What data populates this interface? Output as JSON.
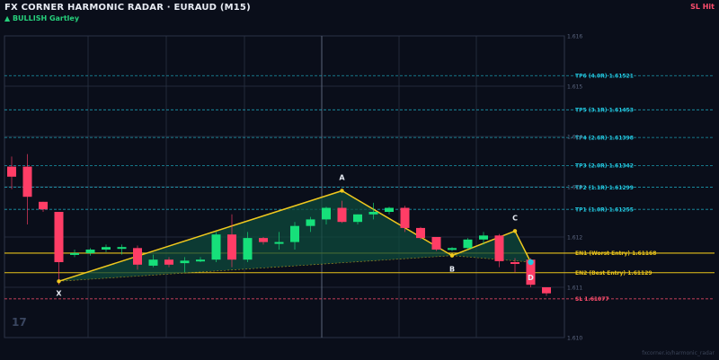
{
  "header": {
    "title": "FX CORNER HARMONIC RADAR  ·  EURAUD (M15)",
    "pattern": "▲ BULLISH  Gartley",
    "status": "SL Hit"
  },
  "footer": {
    "watermark": "17",
    "source": "fxcorner.io/harmonic_radar"
  },
  "chart_data": {
    "type": "candlestick",
    "yticks": [
      "1.616",
      "1.615",
      "1.614",
      "1.613",
      "1.612",
      "1.611",
      "1.610"
    ],
    "ytick_values": [
      1.616,
      1.615,
      1.614,
      1.613,
      1.612,
      1.611,
      1.61
    ],
    "ylim": [
      1.61,
      1.616
    ],
    "candles": [
      {
        "o": 1.6134,
        "h": 1.6136,
        "l": 1.61295,
        "c": 1.6132
      },
      {
        "o": 1.6134,
        "h": 1.61365,
        "l": 1.61225,
        "c": 1.6128
      },
      {
        "o": 1.6127,
        "h": 1.6127,
        "l": 1.6125,
        "c": 1.61255
      },
      {
        "o": 1.6125,
        "h": 1.6125,
        "l": 1.61105,
        "c": 1.6115
      },
      {
        "o": 1.61165,
        "h": 1.61175,
        "l": 1.6116,
        "c": 1.61168
      },
      {
        "o": 1.61168,
        "h": 1.61178,
        "l": 1.61163,
        "c": 1.61175
      },
      {
        "o": 1.61175,
        "h": 1.61185,
        "l": 1.6117,
        "c": 1.6118
      },
      {
        "o": 1.6118,
        "h": 1.61185,
        "l": 1.61165,
        "c": 1.6118
      },
      {
        "o": 1.61178,
        "h": 1.61183,
        "l": 1.61135,
        "c": 1.61145
      },
      {
        "o": 1.61143,
        "h": 1.61165,
        "l": 1.6114,
        "c": 1.61155
      },
      {
        "o": 1.61155,
        "h": 1.6116,
        "l": 1.6114,
        "c": 1.61145
      },
      {
        "o": 1.61148,
        "h": 1.6116,
        "l": 1.6113,
        "c": 1.61153
      },
      {
        "o": 1.61153,
        "h": 1.6116,
        "l": 1.6115,
        "c": 1.61155
      },
      {
        "o": 1.61155,
        "h": 1.6121,
        "l": 1.6115,
        "c": 1.61205
      },
      {
        "o": 1.61205,
        "h": 1.61245,
        "l": 1.6114,
        "c": 1.61155
      },
      {
        "o": 1.61155,
        "h": 1.6121,
        "l": 1.6115,
        "c": 1.61198
      },
      {
        "o": 1.61198,
        "h": 1.612,
        "l": 1.61185,
        "c": 1.6119
      },
      {
        "o": 1.6119,
        "h": 1.6121,
        "l": 1.61175,
        "c": 1.6119
      },
      {
        "o": 1.6119,
        "h": 1.6123,
        "l": 1.61175,
        "c": 1.61222
      },
      {
        "o": 1.61222,
        "h": 1.6124,
        "l": 1.6121,
        "c": 1.61235
      },
      {
        "o": 1.61235,
        "h": 1.6126,
        "l": 1.61225,
        "c": 1.61258
      },
      {
        "o": 1.61258,
        "h": 1.61272,
        "l": 1.61228,
        "c": 1.6123
      },
      {
        "o": 1.6123,
        "h": 1.61245,
        "l": 1.61225,
        "c": 1.61245
      },
      {
        "o": 1.61245,
        "h": 1.61268,
        "l": 1.61235,
        "c": 1.6125
      },
      {
        "o": 1.6125,
        "h": 1.6126,
        "l": 1.61245,
        "c": 1.61258
      },
      {
        "o": 1.61258,
        "h": 1.61262,
        "l": 1.6121,
        "c": 1.61218
      },
      {
        "o": 1.61218,
        "h": 1.6122,
        "l": 1.61195,
        "c": 1.61198
      },
      {
        "o": 1.612,
        "h": 1.612,
        "l": 1.61172,
        "c": 1.61175
      },
      {
        "o": 1.61175,
        "h": 1.6118,
        "l": 1.61172,
        "c": 1.61178
      },
      {
        "o": 1.61178,
        "h": 1.61198,
        "l": 1.61175,
        "c": 1.61195
      },
      {
        "o": 1.61195,
        "h": 1.6121,
        "l": 1.61185,
        "c": 1.61203
      },
      {
        "o": 1.61203,
        "h": 1.61206,
        "l": 1.6114,
        "c": 1.61152
      },
      {
        "o": 1.6115,
        "h": 1.61158,
        "l": 1.6113,
        "c": 1.61148
      },
      {
        "o": 1.61155,
        "h": 1.61158,
        "l": 1.611,
        "c": 1.61105
      },
      {
        "o": 1.611,
        "h": 1.611,
        "l": 1.61083,
        "c": 1.61088
      }
    ],
    "levels": [
      {
        "label": "TP6 (4.0R)  1.61521",
        "value": 1.61521,
        "kind": "tp"
      },
      {
        "label": "TP5 (3.1R)  1.61453",
        "value": 1.61453,
        "kind": "tp"
      },
      {
        "label": "TP4 (2.6R)  1.61398",
        "value": 1.61398,
        "kind": "tp"
      },
      {
        "label": "TP3 (2.0R)  1.61342",
        "value": 1.61342,
        "kind": "tp"
      },
      {
        "label": "TP2 (1.1R)  1.61299",
        "value": 1.61299,
        "kind": "tp"
      },
      {
        "label": "TP1 (1.0R)  1.61255",
        "value": 1.61255,
        "kind": "tp"
      },
      {
        "label": "EN1 (Worst Entry)  1.61168",
        "value": 1.61168,
        "kind": "entry"
      },
      {
        "label": "EN2 (Best Entry)  1.61129",
        "value": 1.61129,
        "kind": "entry"
      },
      {
        "label": "SL  1.61077",
        "value": 1.61077,
        "kind": "sl"
      }
    ],
    "pattern_points": [
      {
        "label": "X",
        "index": 3,
        "value": 1.61112
      },
      {
        "label": "A",
        "index": 21,
        "value": 1.61292
      },
      {
        "label": "B",
        "index": 28,
        "value": 1.61163
      },
      {
        "label": "C",
        "index": 32,
        "value": 1.61212
      },
      {
        "label": "D",
        "index": 33,
        "value": 1.6115
      }
    ],
    "colors": {
      "background": "#0a0e1a",
      "bull": "#16e07a",
      "bear": "#ff3d66",
      "tp": "#22c8e0",
      "entry": "#e8c21a",
      "sl": "#ff4d6d",
      "pattern": "#f0c81e",
      "pattern_fill": "#0e4a3c",
      "grid": "#2a3244"
    }
  }
}
